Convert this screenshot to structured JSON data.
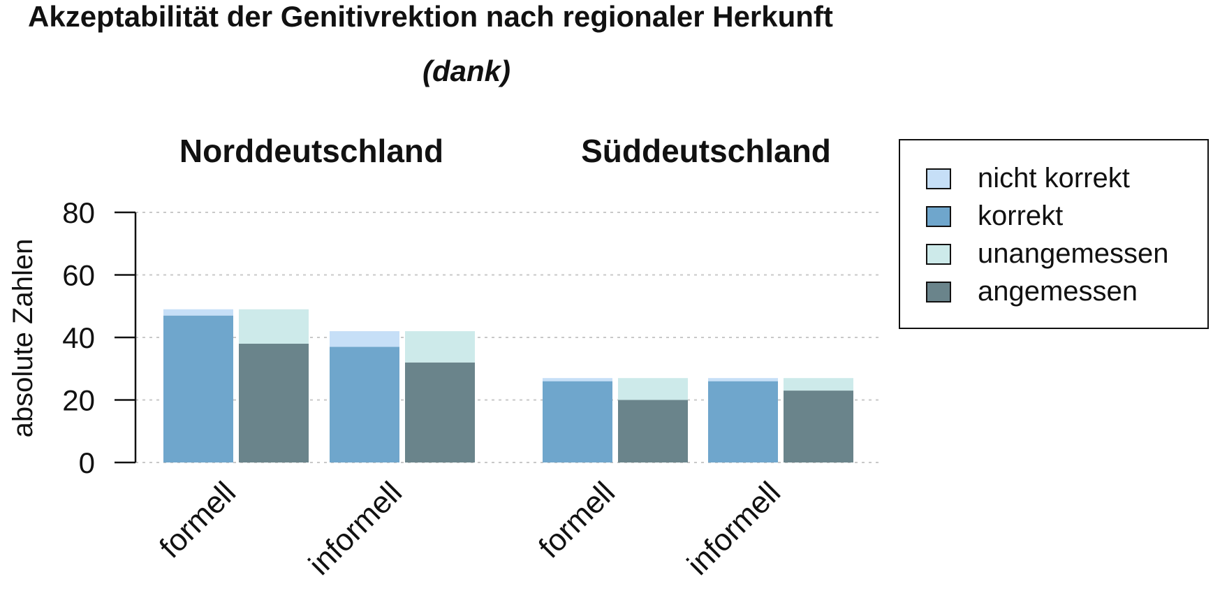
{
  "chart_data": {
    "type": "bar",
    "title": "Akzeptabilität der Genitivrektion nach regionaler Herkunft",
    "subtitle": "(dank)",
    "ylabel": "absolute Zahlen",
    "xlabel": "",
    "ylim": [
      0,
      80
    ],
    "yticks": [
      "0",
      "20",
      "40",
      "60",
      "80"
    ],
    "grid": true,
    "legend_position": "top-right",
    "colors": {
      "nicht korrekt": "#c6dff7",
      "korrekt": "#6fa6cc",
      "unangemessen": "#cdeaea",
      "angemessen": "#6a848b"
    },
    "legend": [
      {
        "label": "nicht korrekt",
        "color": "#c6dff7"
      },
      {
        "label": "korrekt",
        "color": "#6fa6cc"
      },
      {
        "label": "unangemessen",
        "color": "#cdeaea"
      },
      {
        "label": "angemessen",
        "color": "#6a848b"
      }
    ],
    "groups": [
      {
        "name": "Norddeutschland",
        "categories": [
          {
            "label": "formell",
            "korrekt": 47,
            "nicht korrekt": 2,
            "angemessen": 38,
            "unangemessen": 11
          },
          {
            "label": "informell",
            "korrekt": 37,
            "nicht korrekt": 5,
            "angemessen": 32,
            "unangemessen": 10
          }
        ]
      },
      {
        "name": "Süddeutschland",
        "categories": [
          {
            "label": "formell",
            "korrekt": 26,
            "nicht korrekt": 1,
            "angemessen": 20,
            "unangemessen": 7
          },
          {
            "label": "informell",
            "korrekt": 26,
            "nicht korrekt": 1,
            "angemessen": 23,
            "unangemessen": 4
          }
        ]
      }
    ]
  }
}
